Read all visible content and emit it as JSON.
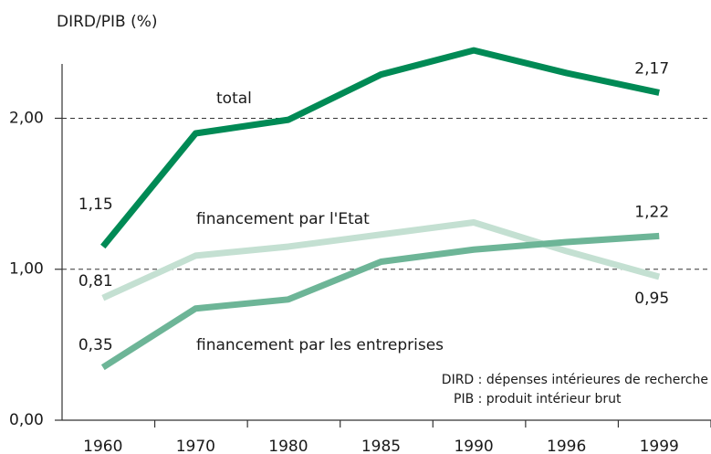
{
  "chart_data": {
    "type": "line",
    "y_label": "DIRD/PIB (%)",
    "categories": [
      "1960",
      "1970",
      "1980",
      "1985",
      "1990",
      "1996",
      "1999"
    ],
    "series": [
      {
        "name": "total",
        "color": "#008a55",
        "values": [
          1.15,
          1.9,
          1.99,
          2.29,
          2.45,
          2.3,
          2.17
        ],
        "value_labels": [
          "1,15",
          null,
          null,
          null,
          null,
          null,
          "2,17"
        ]
      },
      {
        "name": "financement par l'Etat",
        "color": "#c4e0d2",
        "values": [
          0.81,
          1.09,
          1.15,
          1.23,
          1.31,
          1.12,
          0.95
        ],
        "value_labels": [
          "0,81",
          null,
          null,
          null,
          null,
          null,
          "0,95"
        ]
      },
      {
        "name": "financement par les entreprises",
        "color": "#6db597",
        "values": [
          0.35,
          0.74,
          0.8,
          1.05,
          1.13,
          1.18,
          1.22
        ],
        "value_labels": [
          "0,35",
          null,
          null,
          null,
          null,
          null,
          "1,22"
        ]
      }
    ],
    "ylim": [
      0,
      2.36
    ],
    "yticks": [
      {
        "value": 0,
        "label": "0,00"
      },
      {
        "value": 1,
        "label": "1,00"
      },
      {
        "value": 2,
        "label": "2,00"
      }
    ],
    "grid": true,
    "notes": [
      "DIRD : dépenses intérieures de recherche",
      "PIB : produit intérieur brut"
    ]
  }
}
